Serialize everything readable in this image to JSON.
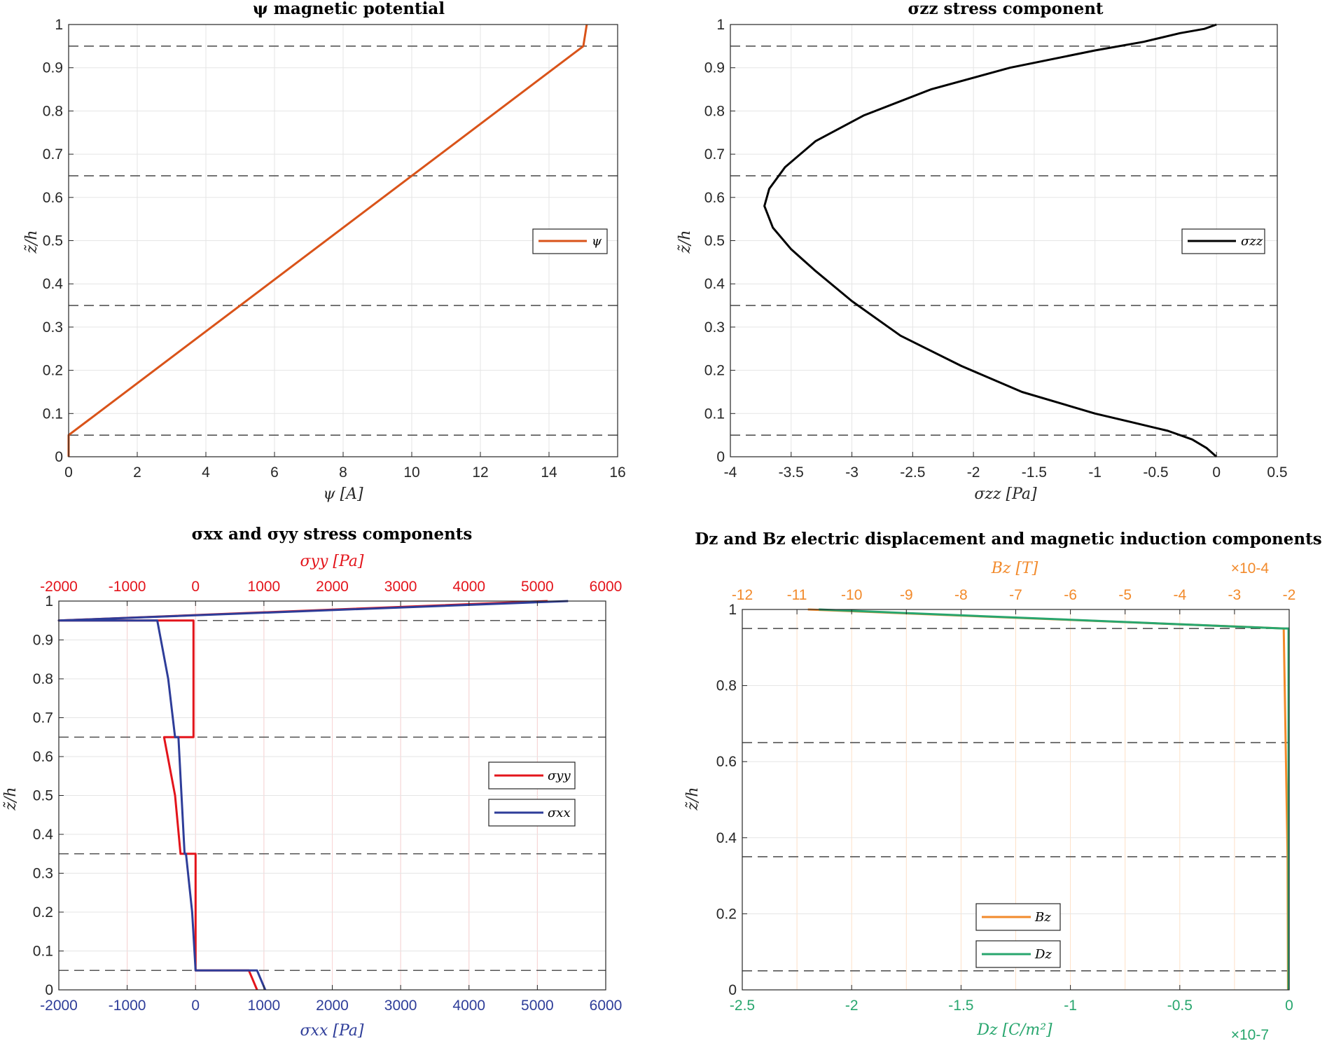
{
  "chart_data": [
    {
      "type": "line",
      "title": "ψ magnetic potential",
      "xlabel": "ψ [A]",
      "ylabel": "z̃/h",
      "xlim": [
        0,
        16
      ],
      "ylim": [
        0,
        1
      ],
      "xticks": [
        "0",
        "2",
        "4",
        "6",
        "8",
        "10",
        "12",
        "14",
        "16"
      ],
      "yticks": [
        "0",
        "0.1",
        "0.2",
        "0.3",
        "0.4",
        "0.5",
        "0.6",
        "0.7",
        "0.8",
        "0.9",
        "1"
      ],
      "grid": true,
      "layer_boundaries": [
        0.05,
        0.35,
        0.65,
        0.95
      ],
      "legend_position": "right",
      "series": [
        {
          "name": "ψ",
          "color": "#D95319",
          "points": [
            [
              0,
              0
            ],
            [
              0,
              0.05
            ],
            [
              15,
              0.95
            ],
            [
              15.1,
              1.0
            ]
          ]
        }
      ]
    },
    {
      "type": "line",
      "title": "σzz stress component",
      "xlabel": "σzz [Pa]",
      "ylabel": "z̃/h",
      "xlim": [
        -4,
        0.5
      ],
      "ylim": [
        0,
        1
      ],
      "xticks": [
        "-4",
        "-3.5",
        "-3",
        "-2.5",
        "-2",
        "-1.5",
        "-1",
        "-0.5",
        "0",
        "0.5"
      ],
      "yticks": [
        "0",
        "0.1",
        "0.2",
        "0.3",
        "0.4",
        "0.5",
        "0.6",
        "0.7",
        "0.8",
        "0.9",
        "1"
      ],
      "grid": true,
      "layer_boundaries": [
        0.05,
        0.35,
        0.65,
        0.95
      ],
      "legend_position": "right",
      "series": [
        {
          "name": "σzz",
          "color": "#000000",
          "points": [
            [
              0,
              0
            ],
            [
              -0.08,
              0.02
            ],
            [
              -0.2,
              0.04
            ],
            [
              -0.4,
              0.06
            ],
            [
              -0.7,
              0.08
            ],
            [
              -1.0,
              0.1
            ],
            [
              -1.6,
              0.15
            ],
            [
              -2.1,
              0.21
            ],
            [
              -2.6,
              0.28
            ],
            [
              -3.0,
              0.36
            ],
            [
              -3.3,
              0.43
            ],
            [
              -3.5,
              0.48
            ],
            [
              -3.65,
              0.53
            ],
            [
              -3.72,
              0.58
            ],
            [
              -3.68,
              0.62
            ],
            [
              -3.55,
              0.67
            ],
            [
              -3.3,
              0.73
            ],
            [
              -2.9,
              0.79
            ],
            [
              -2.35,
              0.85
            ],
            [
              -1.7,
              0.9
            ],
            [
              -1.0,
              0.94
            ],
            [
              -0.6,
              0.96
            ],
            [
              -0.3,
              0.98
            ],
            [
              -0.1,
              0.99
            ],
            [
              0,
              1.0
            ]
          ]
        }
      ]
    },
    {
      "type": "line",
      "title": "σxx and σyy stress components",
      "xlabel": "σxx [Pa]",
      "x2label": "σyy [Pa]",
      "ylabel": "z̃/h",
      "xlim": [
        -2000,
        6000
      ],
      "ylim": [
        0,
        1
      ],
      "xticks": [
        "-2000",
        "-1000",
        "0",
        "1000",
        "2000",
        "3000",
        "4000",
        "5000",
        "6000"
      ],
      "x2ticks": [
        "-2000",
        "-1000",
        "0",
        "1000",
        "2000",
        "3000",
        "4000",
        "5000",
        "6000"
      ],
      "yticks": [
        "0",
        "0.1",
        "0.2",
        "0.3",
        "0.4",
        "0.5",
        "0.6",
        "0.7",
        "0.8",
        "0.9",
        "1"
      ],
      "grid": true,
      "layer_boundaries": [
        0.05,
        0.35,
        0.65,
        0.95
      ],
      "legend_position": "right",
      "series": [
        {
          "name": "σyy",
          "color": "#E3141B",
          "points": [
            [
              900,
              0
            ],
            [
              780,
              0.05
            ],
            [
              0,
              0.05
            ],
            [
              0,
              0.35
            ],
            [
              -220,
              0.35
            ],
            [
              -300,
              0.5
            ],
            [
              -460,
              0.65
            ],
            [
              -30,
              0.65
            ],
            [
              -30,
              0.95
            ],
            [
              -2000,
              0.95
            ],
            [
              5150,
              1.0
            ]
          ]
        },
        {
          "name": "σxx",
          "color": "#2E3D99",
          "points": [
            [
              1020,
              0
            ],
            [
              900,
              0.05
            ],
            [
              0,
              0.05
            ],
            [
              -50,
              0.2
            ],
            [
              -140,
              0.35
            ],
            [
              -160,
              0.35
            ],
            [
              -250,
              0.65
            ],
            [
              -300,
              0.65
            ],
            [
              -400,
              0.8
            ],
            [
              -560,
              0.95
            ],
            [
              -2000,
              0.95
            ],
            [
              5450,
              1.0
            ]
          ]
        }
      ]
    },
    {
      "type": "line",
      "title": "Dz and Bz electric displacement and magnetic induction components",
      "xlabel": "Dz [C/m²]",
      "x2label": "Bz [T]",
      "ylabel": "z̃/h",
      "x_exponent": "×10-7",
      "x2_exponent": "×10-4",
      "xlim": [
        -2.5,
        0
      ],
      "x2lim": [
        -12,
        -2
      ],
      "ylim": [
        0,
        1
      ],
      "xticks": [
        "-2.5",
        "-2",
        "-1.5",
        "-1",
        "-0.5",
        "0"
      ],
      "x2ticks": [
        "-12",
        "-11",
        "-10",
        "-9",
        "-8",
        "-7",
        "-6",
        "-5",
        "-4",
        "-3",
        "-2"
      ],
      "yticks": [
        "0",
        "0.2",
        "0.4",
        "0.6",
        "0.8",
        "1"
      ],
      "grid": true,
      "layer_boundaries": [
        0.05,
        0.35,
        0.65,
        0.95
      ],
      "legend_position": "bottom-center",
      "series": [
        {
          "name": "Bz",
          "color": "#F28A2B",
          "points": [
            [
              -2.02,
              0
            ],
            [
              -2.03,
              0.35
            ],
            [
              -2.1,
              0.95
            ],
            [
              -10.8,
              1.0
            ]
          ]
        },
        {
          "name": "Dz",
          "color": "#28A66E",
          "points": [
            [
              -0.003,
              0
            ],
            [
              -0.003,
              0.95
            ],
            [
              -0.03,
              0.95
            ],
            [
              -2.15,
              1.0
            ]
          ]
        }
      ]
    }
  ],
  "titles": {
    "p1": "ψ magnetic potential",
    "p2": "σzz stress component",
    "p3": "σxx and σyy stress components",
    "p4": "Dz and Bz electric displacement and magnetic induction components"
  },
  "labels": {
    "p1_x": "ψ [A]",
    "p1_y": "z̃/h",
    "p2_x": "σzz [Pa]",
    "p2_y": "z̃/h",
    "p3_x": "σxx [Pa]",
    "p3_x2": "σyy [Pa]",
    "p3_y": "z̃/h",
    "p4_x": "Dz [C/m²]",
    "p4_x2": "Bz [T]",
    "p4_y": "z̃/h",
    "p4_xexp": "×10-7",
    "p4_x2exp": "×10-4"
  },
  "legends": {
    "p1": [
      "ψ"
    ],
    "p2": [
      "σzz"
    ],
    "p3": [
      "σyy",
      "σxx"
    ],
    "p4": [
      "Bz",
      "Dz"
    ]
  },
  "colors": {
    "psi": "#D95319",
    "szz": "#000000",
    "syy": "#E3141B",
    "sxx": "#2E3D99",
    "bz": "#F28A2B",
    "dz": "#28A66E",
    "boundary": "#555555"
  }
}
